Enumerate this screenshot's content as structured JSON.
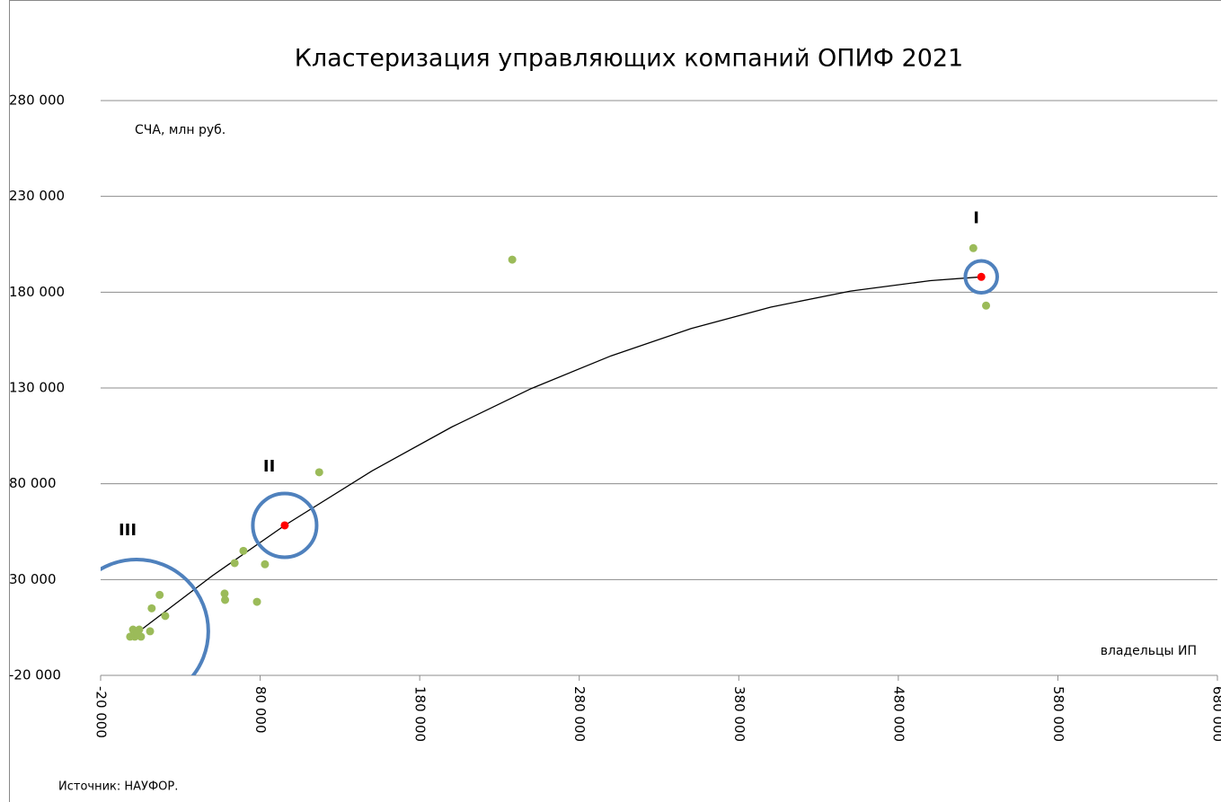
{
  "chart_data": {
    "type": "scatter",
    "title": "Кластеризация управляющих компаний ОПИФ 2021",
    "ylabel": "СЧА, млн руб.",
    "xlabel": "владельцы ИП",
    "source": "Источник: НАУФОР.",
    "xlim": [
      -20000,
      680000
    ],
    "ylim": [
      -20000,
      280000
    ],
    "xticks": [
      {
        "value": -20000,
        "label": "-20 000"
      },
      {
        "value": 80000,
        "label": "80 000"
      },
      {
        "value": 180000,
        "label": "180 000"
      },
      {
        "value": 280000,
        "label": "280 000"
      },
      {
        "value": 380000,
        "label": "380 000"
      },
      {
        "value": 480000,
        "label": "480 000"
      },
      {
        "value": 580000,
        "label": "580 000"
      },
      {
        "value": 680000,
        "label": "680 000"
      }
    ],
    "yticks": [
      {
        "value": -20000,
        "label": "-20 000"
      },
      {
        "value": 30000,
        "label": "30 000"
      },
      {
        "value": 80000,
        "label": "80 000"
      },
      {
        "value": 130000,
        "label": "130 000"
      },
      {
        "value": 180000,
        "label": "180 000"
      },
      {
        "value": 230000,
        "label": "230 000"
      },
      {
        "value": 280000,
        "label": "280 000"
      }
    ],
    "grid": true,
    "series": [
      {
        "color": "#9bbb59",
        "x": [
          238000,
          527000,
          535000,
          117000,
          69500,
          64000,
          83000,
          57700,
          58000,
          78000,
          17000,
          12000,
          20500,
          11000,
          300,
          4200,
          1400,
          5300,
          3100,
          -1500
        ],
        "values": [
          197000,
          203000,
          173000,
          86000,
          45000,
          38600,
          38000,
          22700,
          19400,
          18400,
          22000,
          15000,
          11000,
          3000,
          3900,
          3900,
          200,
          200,
          2000,
          200
        ]
      },
      {
        "color": "#ff0000",
        "x": [
          532000,
          95400
        ],
        "values": [
          188000,
          58300
        ]
      }
    ],
    "trend": {
      "color": "#000000",
      "x": [
        2500,
        50000,
        95400,
        150000,
        200000,
        250000,
        300000,
        350000,
        400000,
        450000,
        500000,
        532000
      ],
      "values": [
        2000,
        32000,
        58300,
        86700,
        109600,
        129700,
        146800,
        161000,
        172200,
        180600,
        186000,
        188000
      ]
    },
    "clusters": [
      {
        "label": "I",
        "x": 532000,
        "y": 188000,
        "radius": 10000
      },
      {
        "label": "II",
        "x": 95400,
        "y": 58300,
        "radius": 20000
      },
      {
        "label": "III",
        "x": 2500,
        "y": 3000,
        "radius": 45000
      }
    ],
    "cluster_color": "#4f81bd"
  }
}
